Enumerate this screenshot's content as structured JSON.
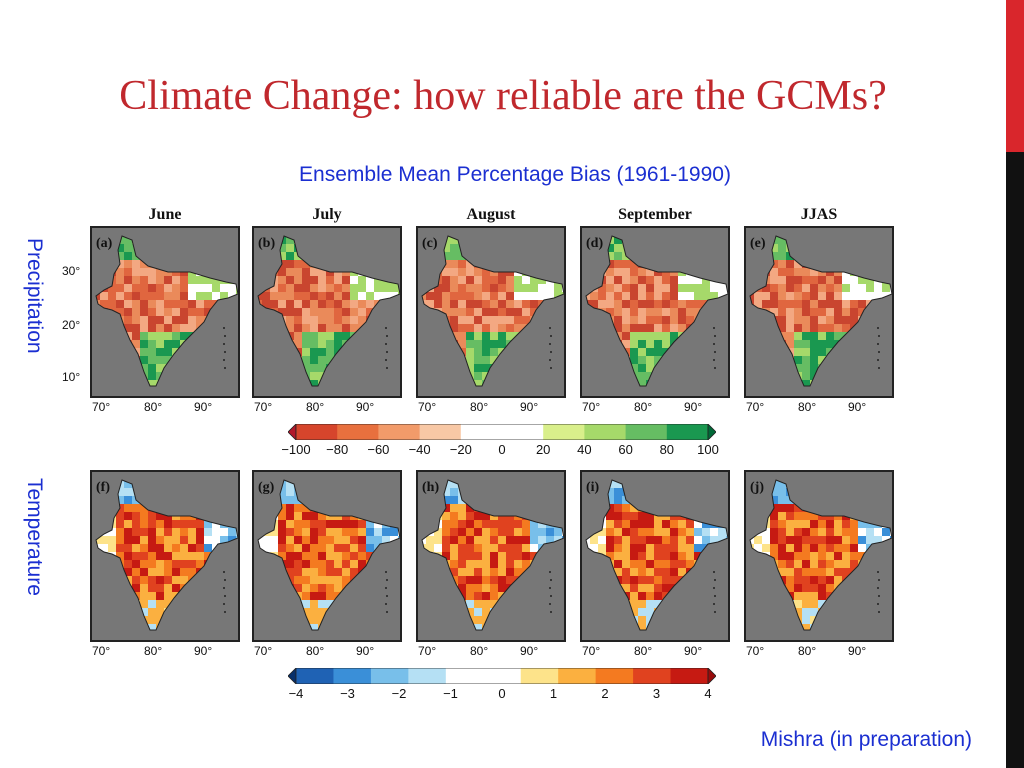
{
  "slide": {
    "title": "Climate Change: how reliable are the GCMs?",
    "subtitle": "Ensemble Mean Percentage Bias (1961-1990)",
    "credit": "Mishra (in preparation)",
    "row_labels": [
      "Precipitation",
      "Temperature"
    ],
    "accent_colors": {
      "top_bar": "#d9262c",
      "bottom_bar": "#111111",
      "title": "#c0282d",
      "text": "#1b2fd1"
    }
  },
  "months": [
    "June",
    "July",
    "August",
    "September",
    "JJAS"
  ],
  "panels_precip": [
    "(a)",
    "(b)",
    "(c)",
    "(d)",
    "(e)"
  ],
  "panels_temp": [
    "(f)",
    "(g)",
    "(h)",
    "(i)",
    "(j)"
  ],
  "lat_labels": [
    "30°",
    "20°",
    "10°"
  ],
  "lon_labels": [
    "70°",
    "80°",
    "90°"
  ],
  "precip_colorbar": {
    "ticks": [
      "−100",
      "−80",
      "−60",
      "−40",
      "−20",
      "0",
      "20",
      "40",
      "60",
      "80",
      "100"
    ],
    "colors": [
      "#b2182b",
      "#d6452c",
      "#e8703e",
      "#f29b6a",
      "#f8c8a5",
      "#ffffff",
      "#ffffff",
      "#d9ef8b",
      "#a6d96a",
      "#66bd63",
      "#1a9850",
      "#006837"
    ]
  },
  "temp_colorbar": {
    "ticks": [
      "−4",
      "−3",
      "−2",
      "−1",
      "0",
      "1",
      "2",
      "3",
      "4"
    ],
    "colors": [
      "#08306b",
      "#1f62b4",
      "#3a8fd8",
      "#78bfea",
      "#b5e0f4",
      "#ffffff",
      "#ffffff",
      "#fde38a",
      "#fbb040",
      "#f47a20",
      "#e0421f",
      "#c61a12",
      "#980b0b"
    ]
  }
}
